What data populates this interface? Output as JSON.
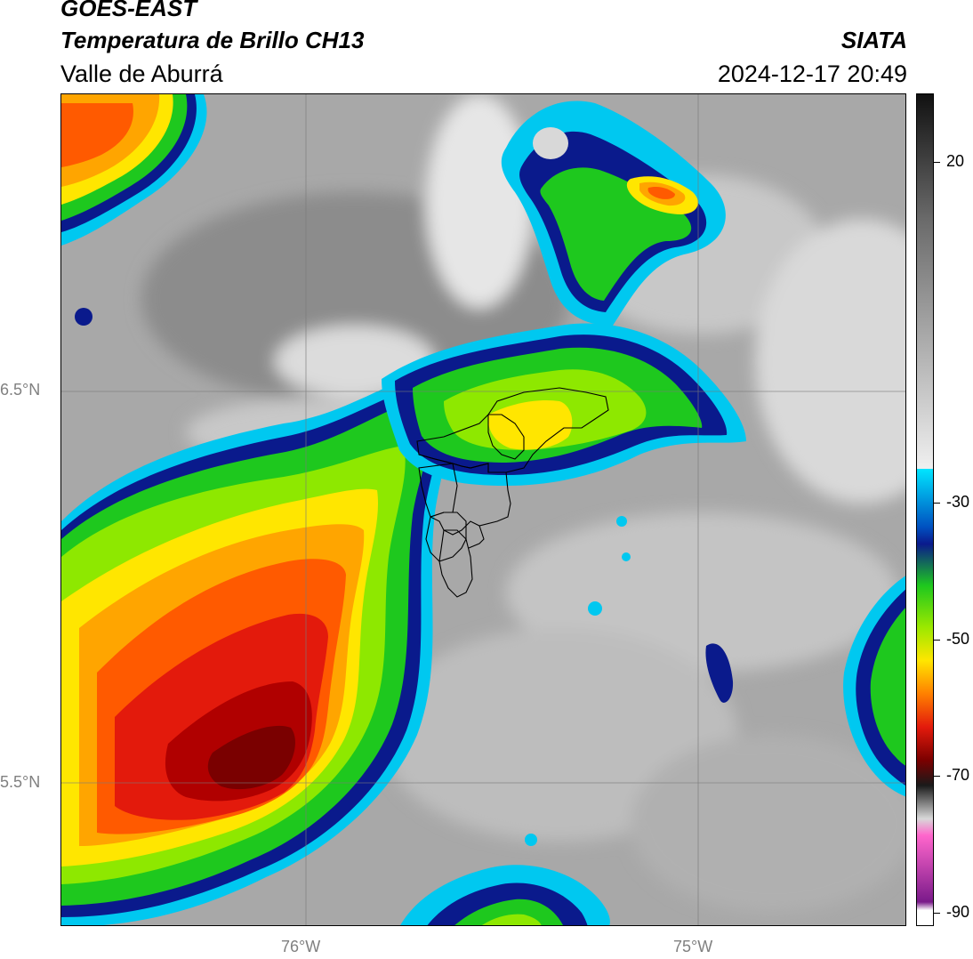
{
  "header": {
    "title_line1": "GOES-EAST",
    "title_line2": "Temperatura de Brillo CH13",
    "subtitle": "Valle de Aburrá",
    "organization": "SIATA",
    "datetime": "2024-12-17 20:49"
  },
  "chart_data": {
    "type": "heatmap",
    "title": "Temperatura de Brillo CH13",
    "x_axis": {
      "labels": [
        "76°W",
        "75°W"
      ],
      "values_deg_w": [
        76,
        75
      ],
      "range_deg_w": [
        76.6,
        74.45
      ]
    },
    "y_axis": {
      "labels": [
        "6.5°N",
        "5.5°N"
      ],
      "values_deg_n": [
        6.5,
        5.5
      ],
      "range_deg_n": [
        5.13,
        7.25
      ]
    },
    "grid": true,
    "colorbar": {
      "ticks": [
        20,
        -30,
        -50,
        -70,
        -90
      ],
      "tick_labels": [
        "20",
        "-30",
        "-50",
        "-70",
        "-90"
      ],
      "range": [
        -92,
        30
      ]
    }
  },
  "colors": {
    "cloud_dark_red": "#7a0000",
    "cloud_red": "#e31a0c",
    "cloud_orange": "#ff7a00",
    "cloud_yellow": "#ffe600",
    "cloud_green": "#1ec81e",
    "cloud_dark_blue": "#0a1a8c",
    "cloud_cyan": "#00c8f0",
    "clear_gray": "#9a9a9a",
    "magenta": "#c020a0"
  }
}
